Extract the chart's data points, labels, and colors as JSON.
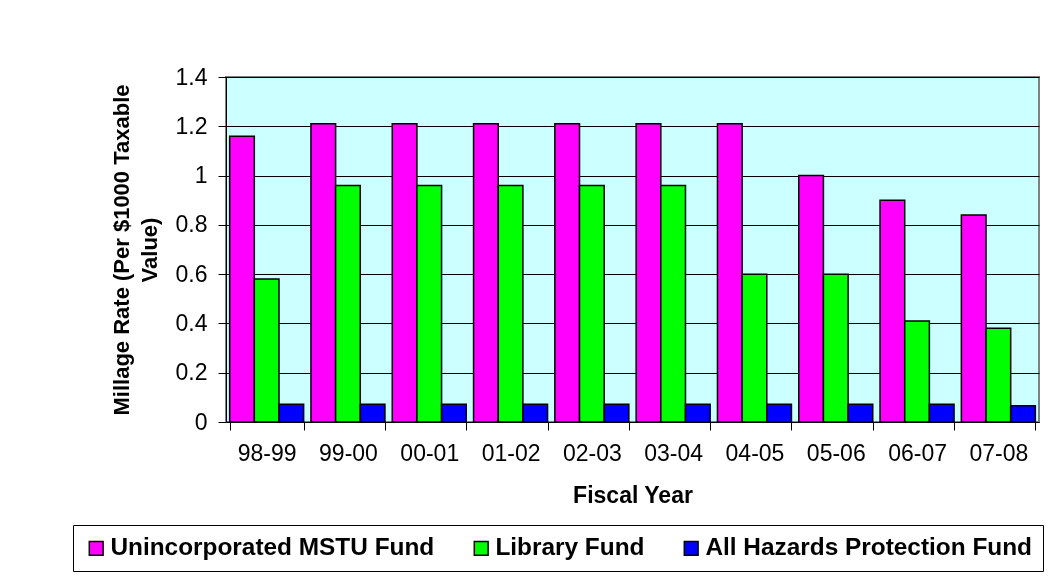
{
  "chart_data": {
    "type": "bar",
    "xlabel": "Fiscal Year",
    "ylabel": "Millage Rate (Per $1000 Taxable Value)",
    "categories": [
      "98-99",
      "99-00",
      "00-01",
      "01-02",
      "02-03",
      "03-04",
      "04-05",
      "05-06",
      "06-07",
      "07-08"
    ],
    "series": [
      {
        "name": "Unincorporated MSTU Fund",
        "color": "#ff00ff",
        "values": [
          1.16,
          1.21,
          1.21,
          1.21,
          1.21,
          1.21,
          1.21,
          1.0,
          0.9,
          0.84
        ]
      },
      {
        "name": "Library Fund",
        "color": "#00ff00",
        "values": [
          0.58,
          0.96,
          0.96,
          0.96,
          0.96,
          0.96,
          0.6,
          0.6,
          0.41,
          0.38
        ]
      },
      {
        "name": "All Hazards Protection Fund",
        "color": "#0000ff",
        "values": [
          0.072,
          0.072,
          0.072,
          0.072,
          0.072,
          0.072,
          0.072,
          0.072,
          0.072,
          0.066
        ]
      }
    ],
    "ylim": [
      0,
      1.4
    ],
    "yticks": [
      0,
      0.2,
      0.4,
      0.6,
      0.8,
      1,
      1.2,
      1.4
    ],
    "grid": "y",
    "legend": "bottom"
  }
}
